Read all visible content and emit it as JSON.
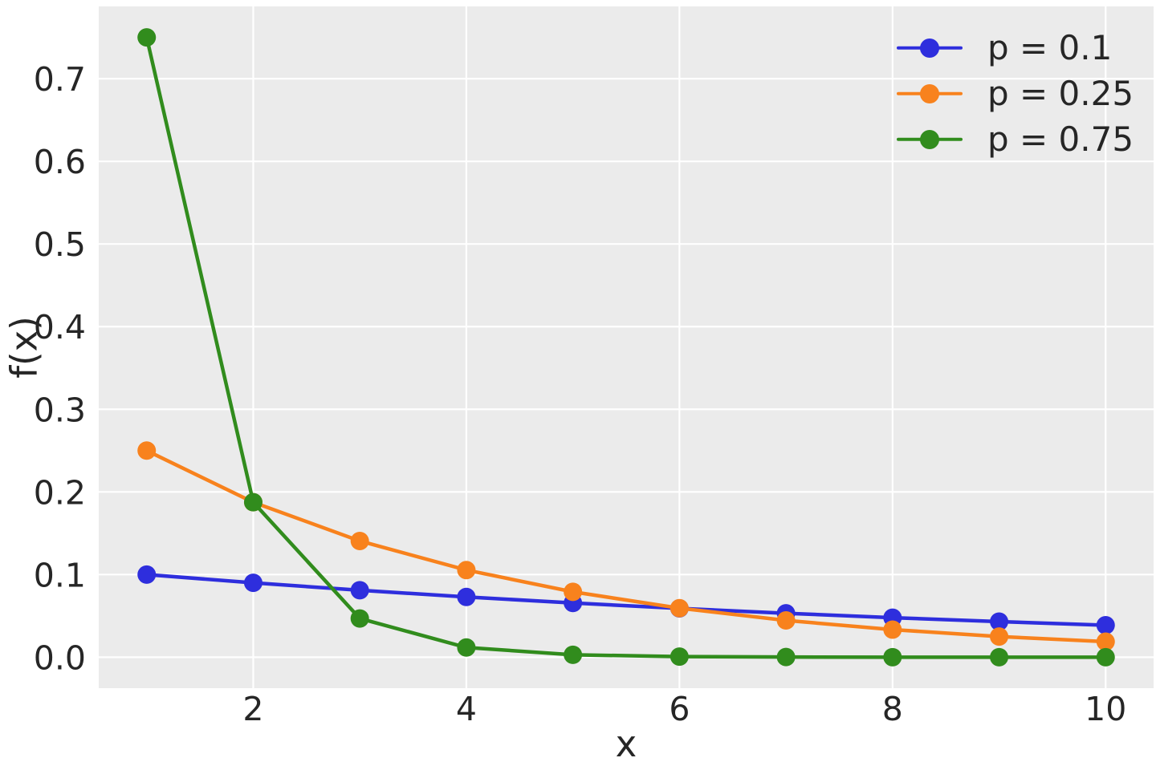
{
  "chart_data": {
    "type": "line",
    "x": [
      1,
      2,
      3,
      4,
      5,
      6,
      7,
      8,
      9,
      10
    ],
    "series": [
      {
        "label": "p = 0.1",
        "color": "#2e2edd",
        "values": [
          0.1,
          0.09,
          0.081,
          0.0729,
          0.06561,
          0.059049,
          0.0531441,
          0.0478297,
          0.0430467,
          0.038742
        ]
      },
      {
        "label": "p = 0.25",
        "color": "#f8821d",
        "values": [
          0.25,
          0.1875,
          0.140625,
          0.1054688,
          0.0791016,
          0.0593262,
          0.0444946,
          0.033371,
          0.0250282,
          0.0187712
        ]
      },
      {
        "label": "p = 0.75",
        "color": "#318c1d",
        "values": [
          0.75,
          0.1875,
          0.046875,
          0.0117188,
          0.0029297,
          0.0007324,
          0.0001831,
          4.58e-05,
          1.14e-05,
          2.9e-06
        ]
      }
    ],
    "title": "",
    "xlabel": "x",
    "ylabel": "f(x)",
    "x_ticks": [
      2,
      4,
      6,
      8,
      10
    ],
    "y_ticks": [
      0.0,
      0.1,
      0.2,
      0.3,
      0.4,
      0.5,
      0.6,
      0.7
    ],
    "xlim": [
      0.55,
      10.45
    ],
    "ylim": [
      -0.0375,
      0.7875
    ],
    "grid": true,
    "legend_position": "upper right",
    "styles": {
      "figure_background": "#ffffff",
      "plot_background": "#ebebeb",
      "grid_color": "#ffffff",
      "text_color": "#262626",
      "tick_font_px": 41,
      "label_font_px": 45,
      "legend_font_px": 42,
      "line_width": 4.5,
      "marker_radius": 11.5
    }
  }
}
